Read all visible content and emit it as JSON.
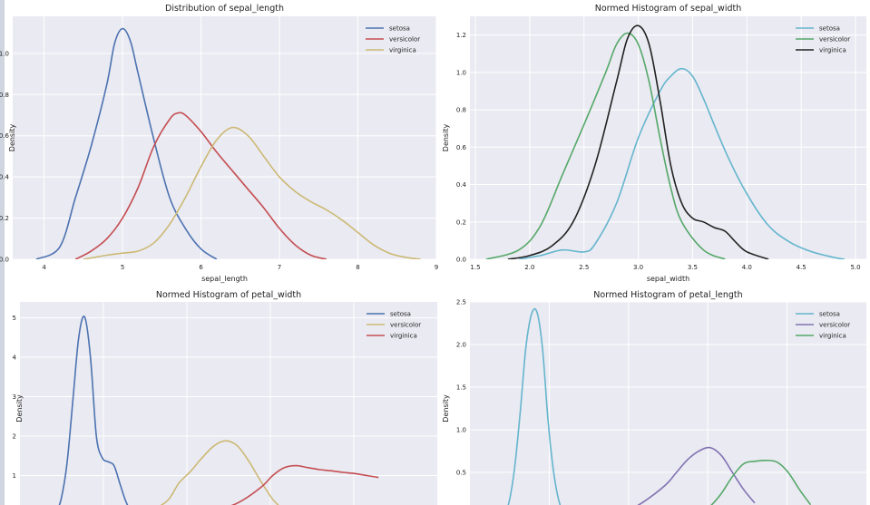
{
  "chart_data": [
    {
      "type": "line",
      "title": "Distribution of sepal_length",
      "xlabel": "sepal_length",
      "ylabel": "Density",
      "xlim": [
        3.6,
        9.0
      ],
      "ylim": [
        0,
        1.18
      ],
      "xticks": [
        "4",
        "5",
        "6",
        "7",
        "8",
        "9"
      ],
      "yticks": [
        "0.0",
        "0.2",
        "0.4",
        "0.6",
        "0.8",
        "1.0"
      ],
      "legend": "top-right",
      "series": [
        {
          "name": "setosa",
          "color": "#4c72b0",
          "x": [
            3.9,
            4.2,
            4.4,
            4.6,
            4.8,
            4.9,
            5.0,
            5.1,
            5.2,
            5.4,
            5.6,
            5.8,
            6.0,
            6.2
          ],
          "y": [
            0.0,
            0.06,
            0.3,
            0.55,
            0.85,
            1.05,
            1.12,
            1.06,
            0.9,
            0.58,
            0.3,
            0.15,
            0.05,
            0.0
          ]
        },
        {
          "name": "versicolor",
          "color": "#c44e52",
          "x": [
            4.4,
            4.6,
            4.8,
            5.0,
            5.2,
            5.4,
            5.6,
            5.7,
            5.8,
            6.0,
            6.2,
            6.4,
            6.6,
            6.8,
            7.0,
            7.2,
            7.4,
            7.6
          ],
          "y": [
            0.0,
            0.04,
            0.1,
            0.2,
            0.35,
            0.55,
            0.68,
            0.71,
            0.7,
            0.62,
            0.52,
            0.43,
            0.34,
            0.25,
            0.15,
            0.07,
            0.02,
            0.0
          ]
        },
        {
          "name": "virginica",
          "color": "#ccb974",
          "x": [
            4.5,
            4.8,
            5.0,
            5.2,
            5.4,
            5.6,
            5.8,
            6.0,
            6.2,
            6.4,
            6.6,
            6.8,
            7.0,
            7.2,
            7.4,
            7.6,
            7.8,
            8.0,
            8.2,
            8.4,
            8.6,
            8.8
          ],
          "y": [
            0.0,
            0.02,
            0.03,
            0.04,
            0.08,
            0.17,
            0.3,
            0.45,
            0.58,
            0.64,
            0.6,
            0.5,
            0.4,
            0.33,
            0.28,
            0.24,
            0.19,
            0.13,
            0.07,
            0.03,
            0.01,
            0.0
          ]
        }
      ]
    },
    {
      "type": "line",
      "title": "Normed Histogram of sepal_width",
      "xlabel": "sepal_width",
      "ylabel": "Density",
      "xlim": [
        1.45,
        5.1
      ],
      "ylim": [
        0,
        1.3
      ],
      "xticks": [
        "1.5",
        "2.0",
        "2.5",
        "3.0",
        "3.5",
        "4.0",
        "4.5",
        "5.0"
      ],
      "yticks": [
        "0.0",
        "0.2",
        "0.4",
        "0.6",
        "0.8",
        "1.0",
        "1.2"
      ],
      "legend": "top-right",
      "series": [
        {
          "name": "setosa",
          "color": "#64b5cd",
          "x": [
            1.9,
            2.1,
            2.3,
            2.5,
            2.6,
            2.8,
            3.0,
            3.2,
            3.3,
            3.4,
            3.5,
            3.6,
            3.8,
            4.0,
            4.2,
            4.4,
            4.6,
            4.8,
            4.9
          ],
          "y": [
            0.0,
            0.02,
            0.05,
            0.04,
            0.08,
            0.3,
            0.65,
            0.9,
            0.98,
            1.02,
            0.98,
            0.86,
            0.58,
            0.35,
            0.18,
            0.09,
            0.04,
            0.01,
            0.0
          ]
        },
        {
          "name": "versicolor",
          "color": "#55a868",
          "x": [
            1.6,
            1.9,
            2.1,
            2.3,
            2.5,
            2.7,
            2.8,
            2.9,
            3.0,
            3.1,
            3.2,
            3.3,
            3.4,
            3.6,
            3.8
          ],
          "y": [
            0.0,
            0.05,
            0.18,
            0.45,
            0.72,
            1.0,
            1.15,
            1.21,
            1.15,
            0.95,
            0.65,
            0.38,
            0.2,
            0.05,
            0.0
          ]
        },
        {
          "name": "virginica",
          "color": "#222222",
          "x": [
            1.8,
            2.0,
            2.2,
            2.4,
            2.6,
            2.8,
            2.9,
            3.0,
            3.1,
            3.2,
            3.3,
            3.4,
            3.5,
            3.6,
            3.7,
            3.8,
            3.9,
            4.0,
            4.2
          ],
          "y": [
            0.0,
            0.02,
            0.07,
            0.2,
            0.5,
            0.95,
            1.18,
            1.25,
            1.15,
            0.85,
            0.5,
            0.3,
            0.22,
            0.2,
            0.17,
            0.15,
            0.09,
            0.04,
            0.0
          ]
        }
      ]
    },
    {
      "type": "line",
      "title": "Normed Histogram of petal_width",
      "ylabel": "Density",
      "xlim": [
        -0.35,
        3.2
      ],
      "ylim": [
        0,
        5.4
      ],
      "yticks": [
        "1",
        "2",
        "3",
        "4",
        "5"
      ],
      "legend": "top-right",
      "series": [
        {
          "name": "setosa",
          "color": "#4c72b0",
          "x": [
            -0.05,
            0.0,
            0.05,
            0.1,
            0.15,
            0.2,
            0.25,
            0.3,
            0.35,
            0.4,
            0.45,
            0.5,
            0.55,
            0.6,
            0.7
          ],
          "y": [
            0.0,
            0.4,
            1.3,
            2.9,
            4.5,
            5.02,
            4.0,
            2.0,
            1.45,
            1.35,
            1.25,
            0.8,
            0.35,
            0.1,
            0.0
          ]
        },
        {
          "name": "versicolor",
          "color": "#ccb974",
          "x": [
            0.7,
            0.9,
            1.0,
            1.1,
            1.2,
            1.3,
            1.4,
            1.5,
            1.6,
            1.7,
            1.8,
            1.9
          ],
          "y": [
            0.0,
            0.35,
            0.8,
            1.1,
            1.45,
            1.75,
            1.88,
            1.75,
            1.35,
            0.85,
            0.4,
            0.1
          ]
        },
        {
          "name": "virginica",
          "color": "#c44e52",
          "x": [
            1.3,
            1.5,
            1.7,
            1.8,
            1.9,
            2.0,
            2.1,
            2.2,
            2.3,
            2.4,
            2.5,
            2.6,
            2.7
          ],
          "y": [
            0.1,
            0.3,
            0.7,
            1.0,
            1.2,
            1.25,
            1.2,
            1.15,
            1.12,
            1.08,
            1.05,
            1.0,
            0.95
          ]
        }
      ]
    },
    {
      "type": "line",
      "title": "Normed Histogram of petal_length",
      "ylabel": "Density",
      "xlim": [
        0.3,
        7.4
      ],
      "ylim": [
        0,
        2.5
      ],
      "yticks": [
        "0.5",
        "1.0",
        "1.5",
        "2.0",
        "2.5"
      ],
      "legend": "top-right",
      "series": [
        {
          "name": "setosa",
          "color": "#64b5cd",
          "x": [
            0.9,
            1.0,
            1.1,
            1.2,
            1.3,
            1.4,
            1.5,
            1.6,
            1.7,
            1.8,
            1.9,
            2.0
          ],
          "y": [
            0.0,
            0.15,
            0.55,
            1.2,
            1.95,
            2.35,
            2.38,
            1.95,
            1.1,
            0.5,
            0.15,
            0.0
          ]
        },
        {
          "name": "versicolor",
          "color": "#8172b2",
          "x": [
            3.0,
            3.4,
            3.8,
            4.0,
            4.2,
            4.4,
            4.6,
            4.8,
            5.0,
            5.2,
            5.4
          ],
          "y": [
            0.0,
            0.15,
            0.35,
            0.5,
            0.65,
            0.75,
            0.79,
            0.7,
            0.5,
            0.3,
            0.14
          ]
        },
        {
          "name": "virginica",
          "color": "#55a868",
          "x": [
            4.4,
            4.6,
            4.8,
            5.0,
            5.2,
            5.4,
            5.6,
            5.8,
            6.0,
            6.2,
            6.4
          ],
          "y": [
            0.0,
            0.1,
            0.25,
            0.45,
            0.6,
            0.63,
            0.64,
            0.62,
            0.5,
            0.3,
            0.12
          ]
        }
      ]
    }
  ]
}
